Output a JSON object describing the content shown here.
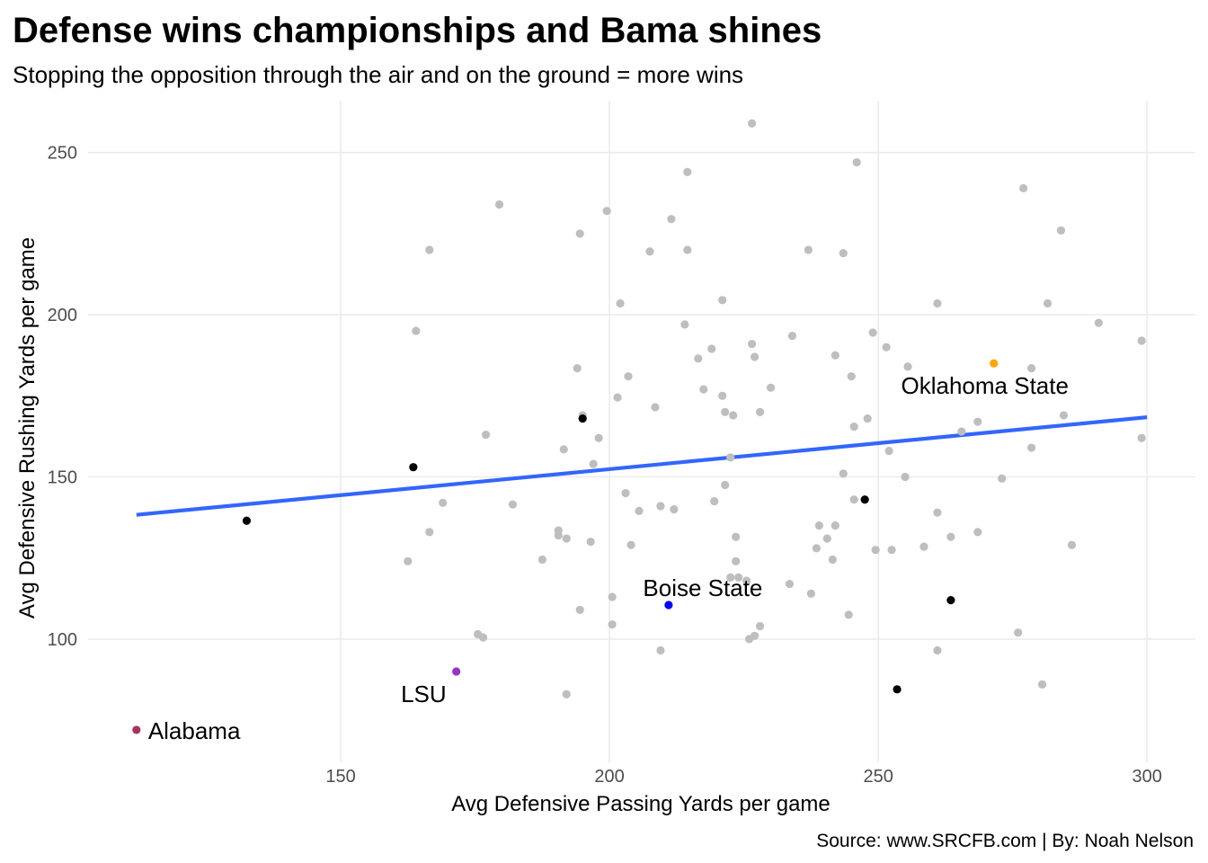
{
  "chart_data": {
    "type": "scatter",
    "title": "Defense wins championships and Bama shines",
    "subtitle": "Stopping the opposition through the air and on the ground = more wins",
    "xlabel": "Avg Defensive Passing Yards per game",
    "ylabel": "Avg Defensive Rushing Yards per game",
    "caption": "Source: www.SRCFB.com | By: Noah Nelson",
    "xlim": [
      103,
      309
    ],
    "ylim": [
      62,
      266
    ],
    "x_ticks": [
      150,
      200,
      250,
      300
    ],
    "y_ticks": [
      100,
      150,
      200,
      250
    ],
    "grid": true,
    "trend_line": {
      "color": "#3366ff",
      "x": [
        112,
        300
      ],
      "y": [
        138.3,
        168.4
      ]
    },
    "colors": {
      "default": "#bebebe",
      "highlight": "#000000"
    },
    "labeled_points": [
      {
        "label": "Alabama",
        "x": 112,
        "y": 72,
        "color": "#a8325e"
      },
      {
        "label": "LSU",
        "x": 171.5,
        "y": 90,
        "color": "#9932cc"
      },
      {
        "label": "Boise State",
        "x": 211,
        "y": 110.5,
        "color": "#0000ff"
      },
      {
        "label": "Oklahoma State",
        "x": 271.5,
        "y": 185,
        "color": "#ffa500"
      }
    ],
    "highlight_points": [
      [
        132.5,
        136.5
      ],
      [
        163.5,
        153
      ],
      [
        195,
        168
      ],
      [
        247.5,
        143
      ],
      [
        263.5,
        112
      ],
      [
        253.5,
        84.5
      ]
    ],
    "points": [
      [
        162.5,
        124
      ],
      [
        164,
        195
      ],
      [
        166.5,
        220
      ],
      [
        166.5,
        133
      ],
      [
        169,
        142
      ],
      [
        175.5,
        101.5
      ],
      [
        176.5,
        100.5
      ],
      [
        177,
        163
      ],
      [
        179.5,
        234
      ],
      [
        182,
        141.5
      ],
      [
        187.5,
        124.5
      ],
      [
        190.5,
        133.5
      ],
      [
        190.5,
        132
      ],
      [
        191.5,
        158.5
      ],
      [
        192,
        131
      ],
      [
        192,
        83
      ],
      [
        194,
        183.5
      ],
      [
        194.5,
        109
      ],
      [
        194.5,
        225
      ],
      [
        195,
        169
      ],
      [
        196.5,
        130
      ],
      [
        197,
        154
      ],
      [
        198,
        162
      ],
      [
        199.5,
        232
      ],
      [
        200.5,
        113
      ],
      [
        200.5,
        104.5
      ],
      [
        201.5,
        174.5
      ],
      [
        202,
        203.5
      ],
      [
        203,
        145
      ],
      [
        203.5,
        181
      ],
      [
        204,
        129
      ],
      [
        205.5,
        139.5
      ],
      [
        207.5,
        219.5
      ],
      [
        208.5,
        171.5
      ],
      [
        209.5,
        141
      ],
      [
        209.5,
        96.5
      ],
      [
        211.5,
        229.5
      ],
      [
        212,
        140
      ],
      [
        214,
        197
      ],
      [
        214.5,
        244
      ],
      [
        214.5,
        220
      ],
      [
        216.5,
        186.5
      ],
      [
        217.5,
        177
      ],
      [
        219,
        189.5
      ],
      [
        219.5,
        142.5
      ],
      [
        221,
        175
      ],
      [
        221,
        204.5
      ],
      [
        221.5,
        170
      ],
      [
        221.5,
        147.5
      ],
      [
        222.5,
        119
      ],
      [
        222.5,
        156
      ],
      [
        223,
        169
      ],
      [
        223.5,
        131.5
      ],
      [
        223.5,
        124
      ],
      [
        224,
        119
      ],
      [
        225.5,
        118
      ],
      [
        226,
        100
      ],
      [
        226.5,
        259
      ],
      [
        226.5,
        191
      ],
      [
        227,
        187
      ],
      [
        227,
        101
      ],
      [
        228,
        170
      ],
      [
        228,
        104
      ],
      [
        230,
        177.5
      ],
      [
        233.5,
        117
      ],
      [
        234,
        193.5
      ],
      [
        237,
        220
      ],
      [
        237.5,
        114
      ],
      [
        238.5,
        128
      ],
      [
        239,
        135
      ],
      [
        240.5,
        131
      ],
      [
        241.5,
        124.5
      ],
      [
        242,
        187.5
      ],
      [
        242,
        135
      ],
      [
        243.5,
        219
      ],
      [
        243.5,
        151
      ],
      [
        244.5,
        107.5
      ],
      [
        245,
        181
      ],
      [
        245.5,
        143
      ],
      [
        245.5,
        165.5
      ],
      [
        246,
        247
      ],
      [
        248,
        168
      ],
      [
        249,
        194.5
      ],
      [
        249.5,
        127.5
      ],
      [
        251.5,
        190
      ],
      [
        252,
        158
      ],
      [
        252.5,
        127.5
      ],
      [
        255,
        150
      ],
      [
        255.5,
        184
      ],
      [
        258.5,
        128.5
      ],
      [
        261,
        203.5
      ],
      [
        261,
        96.5
      ],
      [
        261,
        139
      ],
      [
        263.5,
        131.5
      ],
      [
        265.5,
        164
      ],
      [
        268.5,
        167
      ],
      [
        268.5,
        133
      ],
      [
        273,
        149.5
      ],
      [
        276,
        102
      ],
      [
        277,
        239
      ],
      [
        278.5,
        183.5
      ],
      [
        278.5,
        159
      ],
      [
        280.5,
        86
      ],
      [
        281.5,
        203.5
      ],
      [
        284,
        226
      ],
      [
        284.5,
        169
      ],
      [
        286,
        129
      ],
      [
        291,
        197.5
      ],
      [
        299,
        192
      ],
      [
        299,
        162
      ]
    ]
  }
}
